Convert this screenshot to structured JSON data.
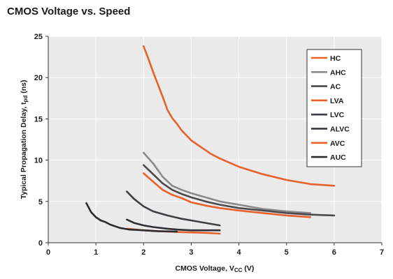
{
  "chart_data": {
    "type": "line",
    "title": "CMOS Voltage vs. Speed",
    "xlabel": {
      "main": "CMOS Voltage, V",
      "sub": "CC",
      "tail": " (V)"
    },
    "ylabel": {
      "main": "Typical Propagation Delay, t",
      "sub": "pd",
      "tail": " (ns)"
    },
    "xlim": [
      0,
      7
    ],
    "ylim": [
      0,
      25
    ],
    "x_ticks": [
      "0",
      "1",
      "2",
      "3",
      "4",
      "5",
      "6",
      "7"
    ],
    "y_ticks": [
      "0",
      "5",
      "10",
      "15",
      "20",
      "25"
    ],
    "grid": true,
    "legend_position": "top-right",
    "series": [
      {
        "name": "HC",
        "color": "#e8612c",
        "points": [
          [
            2.0,
            23.8
          ],
          [
            2.1,
            22.3
          ],
          [
            2.2,
            20.7
          ],
          [
            2.3,
            19.2
          ],
          [
            2.4,
            17.7
          ],
          [
            2.5,
            16.1
          ],
          [
            2.6,
            15.1
          ],
          [
            2.7,
            14.4
          ],
          [
            2.8,
            13.6
          ],
          [
            3.0,
            12.4
          ],
          [
            3.2,
            11.6
          ],
          [
            3.4,
            10.8
          ],
          [
            3.6,
            10.2
          ],
          [
            4.0,
            9.2
          ],
          [
            4.5,
            8.3
          ],
          [
            5.0,
            7.6
          ],
          [
            5.5,
            7.1
          ],
          [
            6.0,
            6.9
          ]
        ]
      },
      {
        "name": "AHC",
        "color": "#8a8a8a",
        "points": [
          [
            2.0,
            10.9
          ],
          [
            2.2,
            9.6
          ],
          [
            2.4,
            8.0
          ],
          [
            2.6,
            6.9
          ],
          [
            2.8,
            6.4
          ],
          [
            3.0,
            6.0
          ],
          [
            3.3,
            5.5
          ],
          [
            3.6,
            5.0
          ],
          [
            4.0,
            4.6
          ],
          [
            4.5,
            4.1
          ],
          [
            5.0,
            3.8
          ],
          [
            5.5,
            3.6
          ]
        ]
      },
      {
        "name": "AC",
        "color": "#4a4a4e",
        "points": [
          [
            2.0,
            9.4
          ],
          [
            2.2,
            8.3
          ],
          [
            2.4,
            7.2
          ],
          [
            2.6,
            6.4
          ],
          [
            2.8,
            5.9
          ],
          [
            3.0,
            5.5
          ],
          [
            3.3,
            5.0
          ],
          [
            3.6,
            4.6
          ],
          [
            4.0,
            4.2
          ],
          [
            4.5,
            3.9
          ],
          [
            5.0,
            3.6
          ],
          [
            5.5,
            3.4
          ],
          [
            6.0,
            3.3
          ]
        ]
      },
      {
        "name": "LVA",
        "color": "#e8612c",
        "points": [
          [
            2.0,
            8.4
          ],
          [
            2.2,
            7.4
          ],
          [
            2.4,
            6.4
          ],
          [
            2.6,
            5.8
          ],
          [
            2.8,
            5.4
          ],
          [
            3.0,
            4.9
          ],
          [
            3.3,
            4.5
          ],
          [
            3.6,
            4.2
          ],
          [
            4.0,
            3.9
          ],
          [
            4.5,
            3.6
          ],
          [
            5.0,
            3.3
          ],
          [
            5.5,
            3.1
          ]
        ]
      },
      {
        "name": "LVC",
        "color": "#3e3e44",
        "points": [
          [
            1.65,
            6.2
          ],
          [
            1.8,
            5.3
          ],
          [
            2.0,
            4.4
          ],
          [
            2.2,
            3.8
          ],
          [
            2.5,
            3.3
          ],
          [
            2.8,
            2.9
          ],
          [
            3.0,
            2.7
          ],
          [
            3.3,
            2.4
          ],
          [
            3.6,
            2.1
          ]
        ]
      },
      {
        "name": "ALVC",
        "color": "#2e2e34",
        "points": [
          [
            1.65,
            2.8
          ],
          [
            1.8,
            2.4
          ],
          [
            2.0,
            2.1
          ],
          [
            2.2,
            1.9
          ],
          [
            2.5,
            1.7
          ],
          [
            2.7,
            1.6
          ],
          [
            3.0,
            1.5
          ],
          [
            3.3,
            1.5
          ],
          [
            3.6,
            1.5
          ]
        ]
      },
      {
        "name": "AVC",
        "color": "#e8612c",
        "points": [
          [
            1.65,
            1.7
          ],
          [
            2.0,
            1.5
          ],
          [
            2.3,
            1.4
          ],
          [
            2.7,
            1.3
          ],
          [
            3.0,
            1.25
          ],
          [
            3.3,
            1.2
          ],
          [
            3.6,
            1.1
          ]
        ]
      },
      {
        "name": "AUC",
        "color": "#2b2b30",
        "points": [
          [
            0.8,
            4.8
          ],
          [
            0.9,
            3.7
          ],
          [
            1.0,
            3.1
          ],
          [
            1.1,
            2.7
          ],
          [
            1.2,
            2.5
          ],
          [
            1.3,
            2.2
          ],
          [
            1.5,
            1.8
          ],
          [
            1.7,
            1.6
          ],
          [
            2.0,
            1.5
          ],
          [
            2.3,
            1.4
          ],
          [
            2.7,
            1.35
          ]
        ]
      }
    ]
  }
}
